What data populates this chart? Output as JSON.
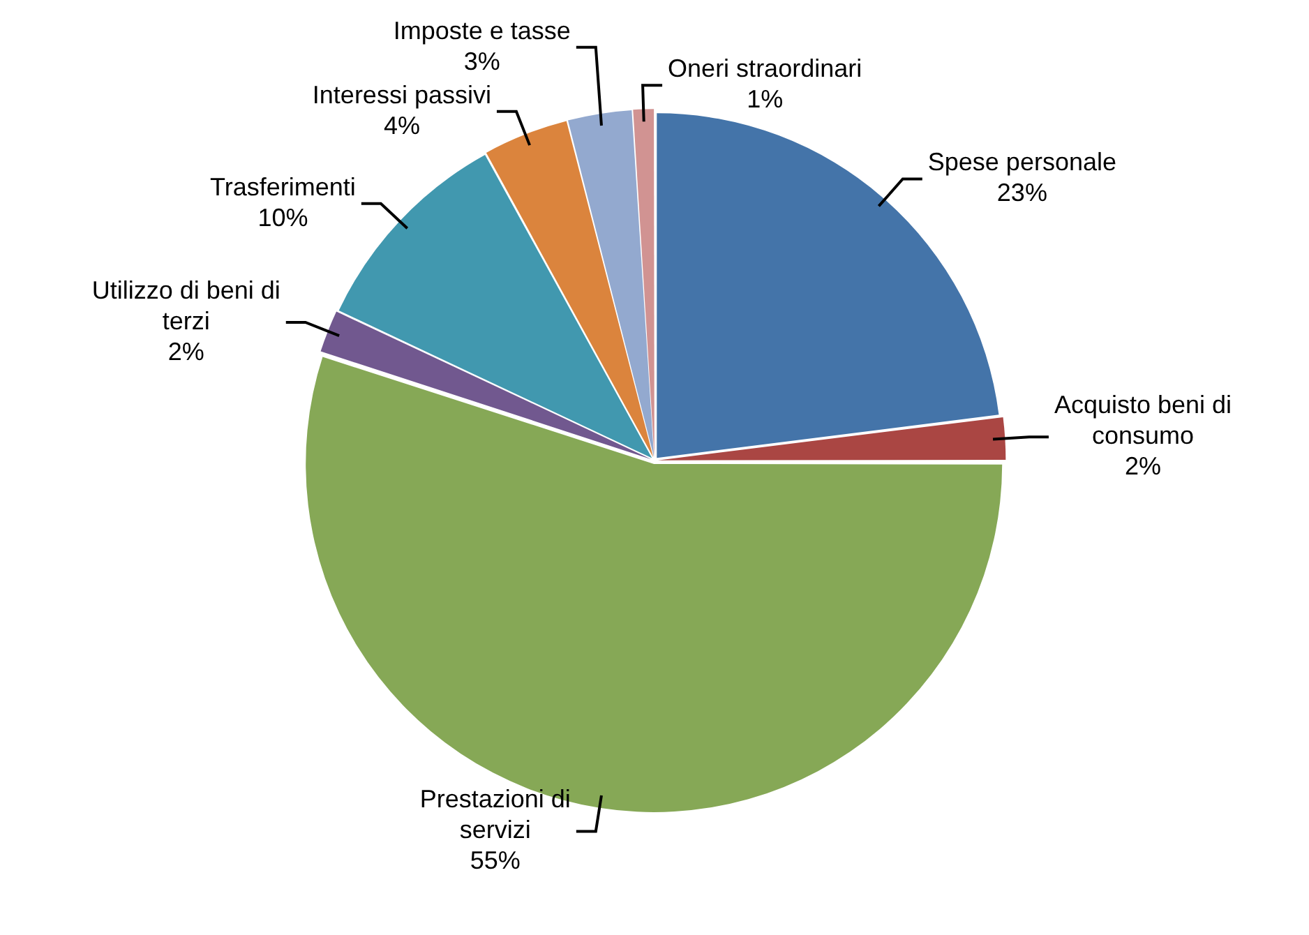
{
  "chart_data": {
    "type": "pie",
    "categories": [
      "Spese personale",
      "Acquisto beni di consumo",
      "Prestazioni di servizi",
      "Utilizzo di beni di terzi",
      "Trasferimenti",
      "Interessi passivi",
      "Imposte e tasse",
      "Oneri straordinari"
    ],
    "values": [
      23,
      2,
      55,
      2,
      10,
      4,
      3,
      1
    ],
    "colors": [
      "#4474a9",
      "#aa4643",
      "#86a856",
      "#71588f",
      "#4198af",
      "#db843d",
      "#93a9cf",
      "#d19392"
    ],
    "value_labels": [
      "23%",
      "2%",
      "55%",
      "2%",
      "10%",
      "4%",
      "3%",
      "1%"
    ],
    "legend": false
  }
}
